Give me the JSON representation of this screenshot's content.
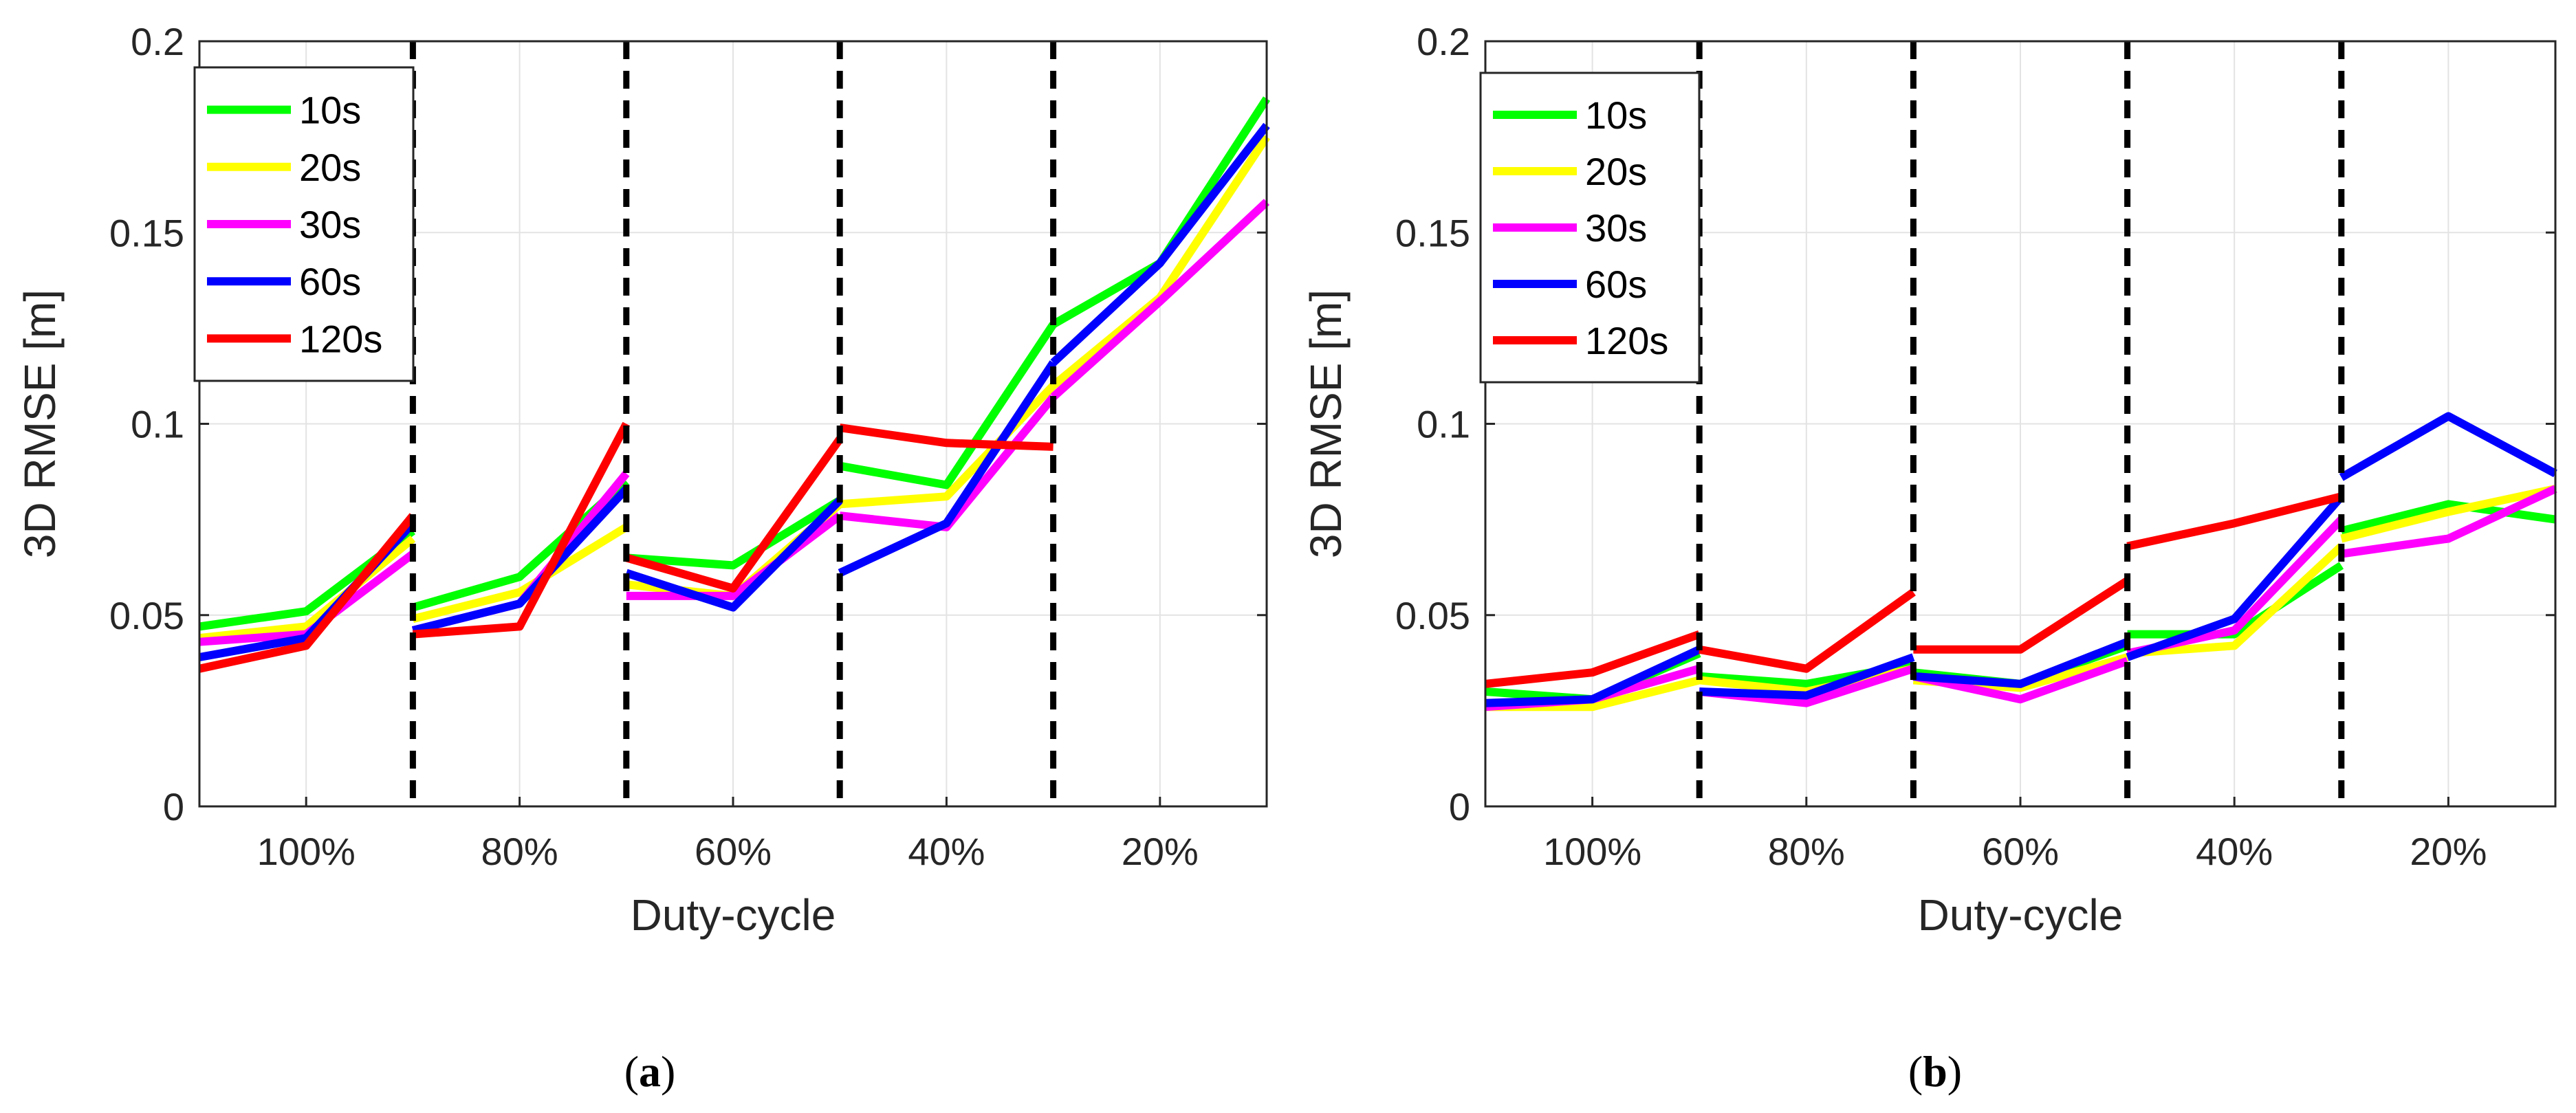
{
  "chart_data": [
    {
      "id": "a",
      "type": "line",
      "caption": {
        "open": "(",
        "letter": "a",
        "close": ")"
      },
      "xlabel": "Duty-cycle",
      "ylabel": "3D RMSE [m]",
      "ylim": [
        0,
        0.2
      ],
      "yticks": [
        0,
        0.05,
        0.1,
        0.15,
        0.2
      ],
      "ytick_labels": [
        "0",
        "0.05",
        "0.1",
        "0.15",
        "0.2"
      ],
      "xlim": [
        0,
        10
      ],
      "group_labels": [
        "100%",
        "80%",
        "60%",
        "40%",
        "20%"
      ],
      "group_centers": [
        1,
        3,
        5,
        7,
        9
      ],
      "separators": [
        2,
        4,
        6,
        8
      ],
      "grid": true,
      "legend_position": "top-left",
      "series": [
        {
          "name": "10s",
          "color": "#00ff00",
          "segments": [
            {
              "x": [
                0,
                1,
                2
              ],
              "y": [
                0.047,
                0.051,
                0.072
              ]
            },
            {
              "x": [
                2,
                3,
                4
              ],
              "y": [
                0.052,
                0.06,
                0.085
              ]
            },
            {
              "x": [
                4,
                5,
                6
              ],
              "y": [
                0.065,
                0.063,
                0.08
              ]
            },
            {
              "x": [
                6,
                7,
                8
              ],
              "y": [
                0.089,
                0.084,
                0.126
              ]
            },
            {
              "x": [
                8,
                9,
                10
              ],
              "y": [
                0.126,
                0.142,
                0.185
              ]
            }
          ]
        },
        {
          "name": "20s",
          "color": "#ffff00",
          "segments": [
            {
              "x": [
                0,
                1,
                2
              ],
              "y": [
                0.044,
                0.047,
                0.07
              ]
            },
            {
              "x": [
                2,
                3,
                4
              ],
              "y": [
                0.049,
                0.056,
                0.073
              ]
            },
            {
              "x": [
                4,
                5,
                6
              ],
              "y": [
                0.058,
                0.055,
                0.079
              ]
            },
            {
              "x": [
                6,
                7,
                8
              ],
              "y": [
                0.079,
                0.081,
                0.11
              ]
            },
            {
              "x": [
                8,
                9,
                10
              ],
              "y": [
                0.11,
                0.133,
                0.175
              ]
            }
          ]
        },
        {
          "name": "30s",
          "color": "#ff00ff",
          "segments": [
            {
              "x": [
                0,
                1,
                2
              ],
              "y": [
                0.043,
                0.045,
                0.066
              ]
            },
            {
              "x": [
                2,
                3,
                4
              ],
              "y": [
                0.046,
                0.053,
                0.087
              ]
            },
            {
              "x": [
                4,
                5,
                6
              ],
              "y": [
                0.055,
                0.055,
                0.076
              ]
            },
            {
              "x": [
                6,
                7,
                8
              ],
              "y": [
                0.076,
                0.073,
                0.107
              ]
            },
            {
              "x": [
                8,
                9,
                10
              ],
              "y": [
                0.107,
                0.132,
                0.158
              ]
            }
          ]
        },
        {
          "name": "60s",
          "color": "#0000ff",
          "segments": [
            {
              "x": [
                0,
                1,
                2
              ],
              "y": [
                0.039,
                0.044,
                0.074
              ]
            },
            {
              "x": [
                2,
                3,
                4
              ],
              "y": [
                0.046,
                0.053,
                0.083
              ]
            },
            {
              "x": [
                4,
                5,
                6
              ],
              "y": [
                0.061,
                0.052,
                0.08
              ]
            },
            {
              "x": [
                6,
                7,
                8
              ],
              "y": [
                0.061,
                0.074,
                0.116
              ]
            },
            {
              "x": [
                8,
                9,
                10
              ],
              "y": [
                0.116,
                0.142,
                0.178
              ]
            }
          ]
        },
        {
          "name": "120s",
          "color": "#ff0000",
          "segments": [
            {
              "x": [
                0,
                1,
                2
              ],
              "y": [
                0.036,
                0.042,
                0.076
              ]
            },
            {
              "x": [
                2,
                3,
                4
              ],
              "y": [
                0.045,
                0.047,
                0.1
              ]
            },
            {
              "x": [
                4,
                5,
                6
              ],
              "y": [
                0.065,
                0.057,
                0.096
              ]
            },
            {
              "x": [
                6,
                7,
                8
              ],
              "y": [
                0.099,
                0.095,
                0.094
              ]
            }
          ]
        }
      ]
    },
    {
      "id": "b",
      "type": "line",
      "caption": {
        "open": "(",
        "letter": "b",
        "close": ")"
      },
      "xlabel": "Duty-cycle",
      "ylabel": "3D RMSE [m]",
      "ylim": [
        0,
        0.2
      ],
      "yticks": [
        0,
        0.05,
        0.1,
        0.15,
        0.2
      ],
      "ytick_labels": [
        "0",
        "0.05",
        "0.1",
        "0.15",
        "0.2"
      ],
      "xlim": [
        0,
        10
      ],
      "group_labels": [
        "100%",
        "80%",
        "60%",
        "40%",
        "20%"
      ],
      "group_centers": [
        1,
        3,
        5,
        7,
        9
      ],
      "separators": [
        2,
        4,
        6,
        8
      ],
      "grid": true,
      "legend_position": "top-left",
      "series": [
        {
          "name": "10s",
          "color": "#00ff00",
          "segments": [
            {
              "x": [
                0,
                1,
                2
              ],
              "y": [
                0.03,
                0.028,
                0.04
              ]
            },
            {
              "x": [
                2,
                3,
                4
              ],
              "y": [
                0.034,
                0.032,
                0.037
              ]
            },
            {
              "x": [
                4,
                5,
                6
              ],
              "y": [
                0.035,
                0.032,
                0.042
              ]
            },
            {
              "x": [
                6,
                7,
                8
              ],
              "y": [
                0.045,
                0.045,
                0.063
              ]
            },
            {
              "x": [
                8,
                9,
                10
              ],
              "y": [
                0.072,
                0.079,
                0.075
              ]
            }
          ]
        },
        {
          "name": "20s",
          "color": "#ffff00",
          "segments": [
            {
              "x": [
                0,
                1,
                2
              ],
              "y": [
                0.026,
                0.026,
                0.033
              ]
            },
            {
              "x": [
                2,
                3,
                4
              ],
              "y": [
                0.033,
                0.03,
                0.036
              ]
            },
            {
              "x": [
                4,
                5,
                6
              ],
              "y": [
                0.033,
                0.031,
                0.039
              ]
            },
            {
              "x": [
                6,
                7,
                8
              ],
              "y": [
                0.04,
                0.042,
                0.068
              ]
            },
            {
              "x": [
                8,
                9,
                10
              ],
              "y": [
                0.07,
                0.077,
                0.083
              ]
            }
          ]
        },
        {
          "name": "30s",
          "color": "#ff00ff",
          "segments": [
            {
              "x": [
                0,
                1,
                2
              ],
              "y": [
                0.026,
                0.028,
                0.036
              ]
            },
            {
              "x": [
                2,
                3,
                4
              ],
              "y": [
                0.03,
                0.027,
                0.036
              ]
            },
            {
              "x": [
                4,
                5,
                6
              ],
              "y": [
                0.034,
                0.028,
                0.038
              ]
            },
            {
              "x": [
                6,
                7,
                8
              ],
              "y": [
                0.04,
                0.046,
                0.075
              ]
            },
            {
              "x": [
                8,
                9,
                10
              ],
              "y": [
                0.066,
                0.07,
                0.083
              ]
            }
          ]
        },
        {
          "name": "60s",
          "color": "#0000ff",
          "segments": [
            {
              "x": [
                0,
                1,
                2
              ],
              "y": [
                0.027,
                0.028,
                0.041
              ]
            },
            {
              "x": [
                2,
                3,
                4
              ],
              "y": [
                0.03,
                0.029,
                0.039
              ]
            },
            {
              "x": [
                4,
                5,
                6
              ],
              "y": [
                0.034,
                0.032,
                0.043
              ]
            },
            {
              "x": [
                6,
                7,
                8
              ],
              "y": [
                0.039,
                0.049,
                0.081
              ]
            },
            {
              "x": [
                8,
                9,
                10
              ],
              "y": [
                0.086,
                0.102,
                0.087
              ]
            }
          ]
        },
        {
          "name": "120s",
          "color": "#ff0000",
          "segments": [
            {
              "x": [
                0,
                1,
                2
              ],
              "y": [
                0.032,
                0.035,
                0.045
              ]
            },
            {
              "x": [
                2,
                3,
                4
              ],
              "y": [
                0.041,
                0.036,
                0.056
              ]
            },
            {
              "x": [
                4,
                5,
                6
              ],
              "y": [
                0.041,
                0.041,
                0.059
              ]
            },
            {
              "x": [
                6,
                7,
                8
              ],
              "y": [
                0.068,
                0.074,
                0.081
              ]
            }
          ]
        }
      ]
    }
  ]
}
